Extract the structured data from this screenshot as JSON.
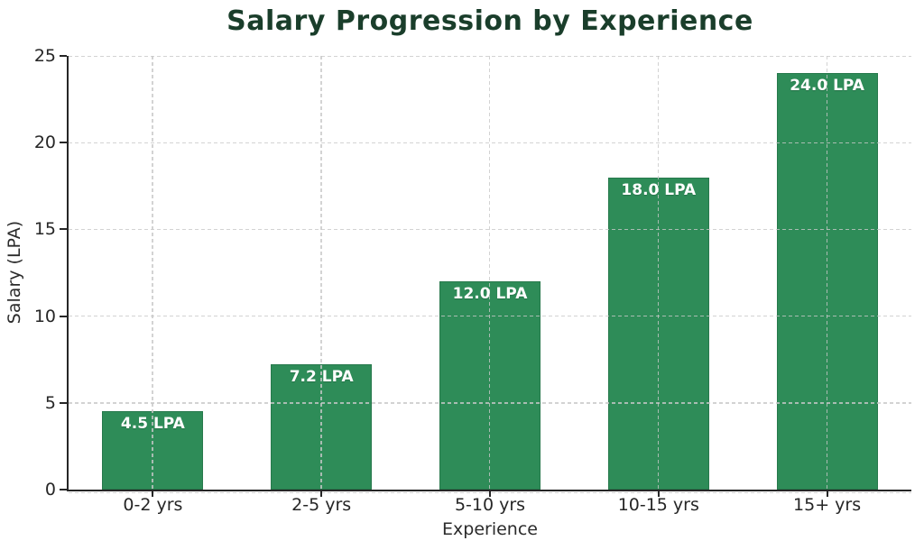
{
  "chart_data": {
    "type": "bar",
    "title": "Salary Progression by Experience",
    "xlabel": "Experience",
    "ylabel": "Salary (LPA)",
    "categories": [
      "0-2 yrs",
      "2-5 yrs",
      "5-10 yrs",
      "10-15 yrs",
      "15+ yrs"
    ],
    "values": [
      4.5,
      7.2,
      12.0,
      18.0,
      24.0
    ],
    "bar_labels": [
      "4.5 LPA",
      "7.2 LPA",
      "12.0 LPA",
      "18.0 LPA",
      "24.0 LPA"
    ],
    "ylim": [
      0,
      25
    ],
    "yticks": [
      0,
      5,
      10,
      15,
      20,
      25
    ],
    "ytick_labels": [
      "0",
      "5",
      "10",
      "15",
      "20",
      "25"
    ],
    "grid": "dashed horizontal and vertical gridlines, drawn over bars",
    "legend": "none",
    "colors": {
      "bar_fill": "#2e8c58",
      "bar_edge": "#27794c",
      "title_text": "#1a3e2b",
      "tick_text": "#262626",
      "axis_label_text": "#2b2b2b",
      "value_label_text": "#ffffff",
      "grid_rgba": "rgba(200,200,200,0.8)",
      "spine": "#262626",
      "background": "#ffffff"
    }
  }
}
